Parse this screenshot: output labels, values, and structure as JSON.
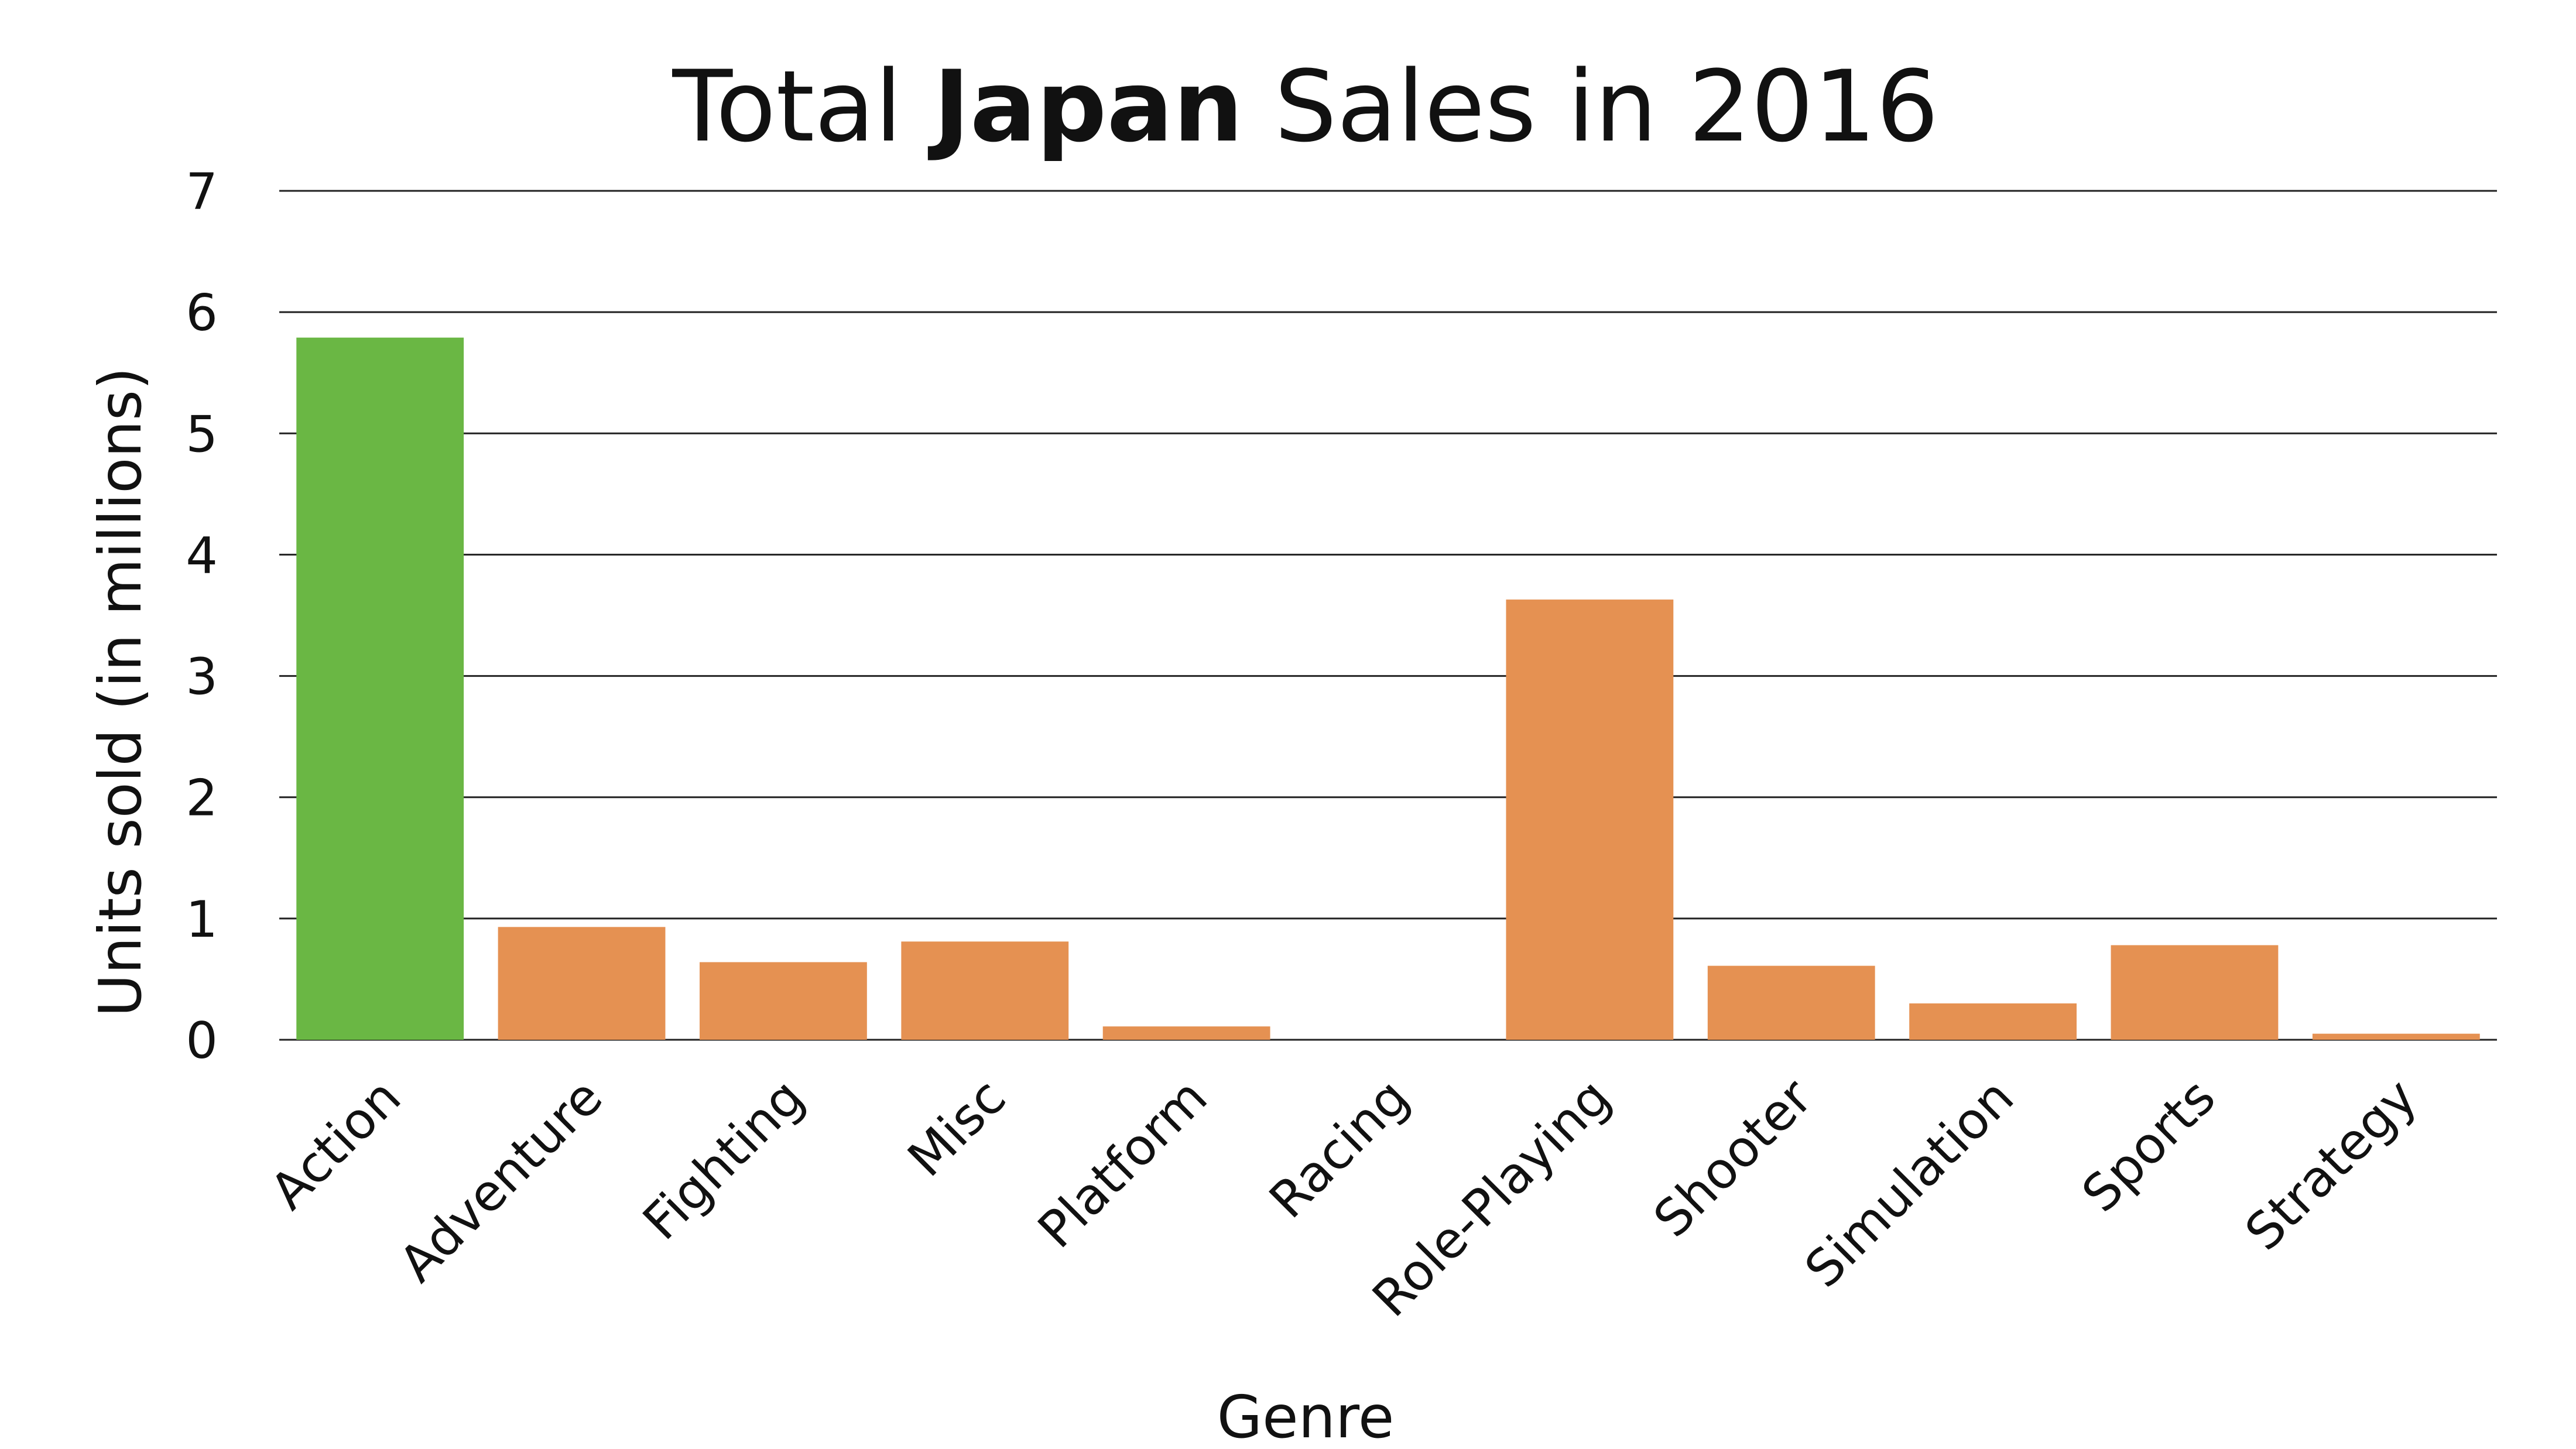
{
  "chart_data": {
    "type": "bar",
    "title_prefix": "Total ",
    "title_bold": "Japan",
    "title_suffix": " Sales in 2016",
    "xlabel": "Genre",
    "ylabel": "Units sold (in millions)",
    "ylim": [
      0,
      7
    ],
    "yticks": [
      "0",
      "1",
      "2",
      "3",
      "4",
      "5",
      "6",
      "7"
    ],
    "grid": true,
    "categories": [
      "Action",
      "Adventure",
      "Fighting",
      "Misc",
      "Platform",
      "Racing",
      "Role-Playing",
      "Shooter",
      "Simulation",
      "Sports",
      "Strategy"
    ],
    "values": [
      5.79,
      0.93,
      0.64,
      0.81,
      0.11,
      0.0,
      3.63,
      0.61,
      0.3,
      0.78,
      0.05
    ],
    "colors": [
      "#6ab744",
      "#e59152",
      "#e59152",
      "#e59152",
      "#e59152",
      "#e59152",
      "#e59152",
      "#e59152",
      "#e59152",
      "#e59152",
      "#e59152"
    ]
  }
}
